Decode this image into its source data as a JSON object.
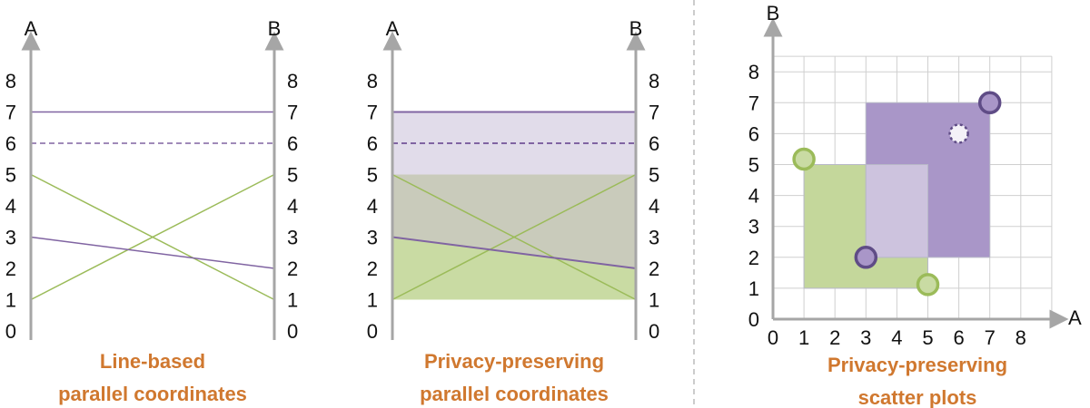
{
  "colors": {
    "axis": "#a6a6a6",
    "grid": "#cfcfcf",
    "green_line": "#9bbb59",
    "purple_line": "#8064a2",
    "purple_dark": "#5f4c86",
    "band_purple": "#e1dcea",
    "band_mixed": "#c9cbbb",
    "band_green": "#c9dba3",
    "rect_green": "#c4d79b",
    "rect_purple": "#a996c8",
    "rect_overlap": "#cdc3de",
    "caption": "#d0782f"
  },
  "panel1": {
    "axis_a": "A",
    "axis_b": "B",
    "ticks": [
      "0",
      "1",
      "2",
      "3",
      "4",
      "5",
      "6",
      "7",
      "8"
    ],
    "caption": [
      "Line-based",
      "parallel coordinates"
    ]
  },
  "panel2": {
    "axis_a": "A",
    "axis_b": "B",
    "ticks": [
      "0",
      "1",
      "2",
      "3",
      "4",
      "5",
      "6",
      "7",
      "8"
    ],
    "caption": [
      "Privacy-preserving",
      "parallel coordinates"
    ]
  },
  "panel3": {
    "axis_x": "A",
    "axis_y": "B",
    "x_ticks": [
      "0",
      "1",
      "2",
      "3",
      "4",
      "5",
      "6",
      "7",
      "8"
    ],
    "y_ticks": [
      "0",
      "1",
      "2",
      "3",
      "4",
      "5",
      "6",
      "7",
      "8"
    ],
    "caption": [
      "Privacy-preserving",
      "scatter plots"
    ]
  },
  "parallel_lines": [
    {
      "a": 7,
      "b": 7,
      "group": "purple",
      "dashed": false
    },
    {
      "a": 6,
      "b": 6,
      "group": "purple",
      "dashed": true
    },
    {
      "a": 5,
      "b": 1,
      "group": "green",
      "dashed": false
    },
    {
      "a": 1,
      "b": 5,
      "group": "green",
      "dashed": false
    },
    {
      "a": 3,
      "b": 2,
      "group": "purple",
      "dashed": false
    }
  ],
  "scatter_points": [
    {
      "a": 1,
      "b": 5,
      "group": "green",
      "hidden": false
    },
    {
      "a": 5,
      "b": 1,
      "group": "green",
      "hidden": false
    },
    {
      "a": 3,
      "b": 2,
      "group": "purple",
      "hidden": false
    },
    {
      "a": 7,
      "b": 7,
      "group": "purple",
      "hidden": false
    },
    {
      "a": 6,
      "b": 6,
      "group": "purple",
      "hidden": true
    }
  ],
  "scatter_regions": [
    {
      "group": "green",
      "a_min": 1,
      "a_max": 5,
      "b_min": 1,
      "b_max": 5
    },
    {
      "group": "purple",
      "a_min": 3,
      "a_max": 7,
      "b_min": 2,
      "b_max": 7
    }
  ]
}
